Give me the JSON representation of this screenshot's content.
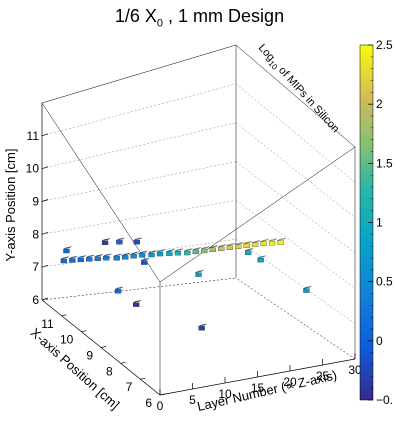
{
  "chart_data": {
    "type": "scatter",
    "title": {
      "prefix": "1/6 X",
      "sub": "0",
      "suffix": " , 1 mm Design"
    },
    "xlabel": "Layer Number (∝ Z-axis)",
    "ylabel": "X-axis Position [cm]",
    "zlabel": "Y-axis Position [cm]",
    "color_label": {
      "prefix": "Log",
      "sub": "10",
      "suffix": " of MIPs in Silicon"
    },
    "layer_range": [
      0,
      30
    ],
    "xpos_range": [
      6,
      12
    ],
    "ypos_range": [
      6,
      12
    ],
    "layer_ticks": [
      "0",
      "5",
      "10",
      "15",
      "20",
      "25",
      "30"
    ],
    "xpos_ticks": [
      "6",
      "7",
      "8",
      "9",
      "10",
      "11"
    ],
    "ypos_ticks": [
      "6",
      "7",
      "8",
      "9",
      "10",
      "11"
    ],
    "color_range": [
      -0.5,
      2.5
    ],
    "color_ticks": [
      "−0.",
      "0",
      "0.5",
      "1",
      "1.5",
      "2",
      "2.5"
    ],
    "points": [
      {
        "layer": 2,
        "x": 11.7,
        "y": 8.3,
        "v": 0.1
      },
      {
        "layer": 3,
        "x": 11.6,
        "y": 8.35,
        "v": 0.15
      },
      {
        "layer": 4,
        "x": 11.5,
        "y": 8.4,
        "v": 0.2
      },
      {
        "layer": 5,
        "x": 11.4,
        "y": 8.45,
        "v": 0.25
      },
      {
        "layer": 6,
        "x": 11.3,
        "y": 8.5,
        "v": 0.3
      },
      {
        "layer": 7,
        "x": 11.2,
        "y": 8.55,
        "v": 0.35
      },
      {
        "layer": 3,
        "x": 11.9,
        "y": 8.6,
        "v": 0.1
      },
      {
        "layer": 8,
        "x": 11.0,
        "y": 8.65,
        "v": 0.4
      },
      {
        "layer": 9,
        "x": 10.9,
        "y": 8.72,
        "v": 0.45
      },
      {
        "layer": 10,
        "x": 10.8,
        "y": 8.8,
        "v": 0.55
      },
      {
        "layer": 11,
        "x": 10.7,
        "y": 8.87,
        "v": 0.6
      },
      {
        "layer": 12,
        "x": 10.55,
        "y": 8.95,
        "v": 0.7
      },
      {
        "layer": 13,
        "x": 10.45,
        "y": 9.02,
        "v": 0.8
      },
      {
        "layer": 14,
        "x": 10.3,
        "y": 9.1,
        "v": 0.95
      },
      {
        "layer": 15,
        "x": 10.2,
        "y": 9.15,
        "v": 1.1
      },
      {
        "layer": 16,
        "x": 10.05,
        "y": 9.22,
        "v": 1.3
      },
      {
        "layer": 17,
        "x": 9.95,
        "y": 9.3,
        "v": 1.5
      },
      {
        "layer": 18,
        "x": 9.85,
        "y": 9.37,
        "v": 1.7
      },
      {
        "layer": 19,
        "x": 9.75,
        "y": 9.45,
        "v": 1.85
      },
      {
        "layer": 20,
        "x": 9.65,
        "y": 9.52,
        "v": 2.0
      },
      {
        "layer": 21,
        "x": 9.55,
        "y": 9.6,
        "v": 2.1
      },
      {
        "layer": 22,
        "x": 9.45,
        "y": 9.67,
        "v": 2.2
      },
      {
        "layer": 23,
        "x": 9.35,
        "y": 9.75,
        "v": 2.25
      },
      {
        "layer": 24,
        "x": 9.25,
        "y": 9.82,
        "v": 2.3
      },
      {
        "layer": 25,
        "x": 9.15,
        "y": 9.9,
        "v": 2.35
      },
      {
        "layer": 26,
        "x": 9.05,
        "y": 9.95,
        "v": 2.4
      },
      {
        "layer": 27,
        "x": 8.95,
        "y": 10.0,
        "v": 2.45
      },
      {
        "layer": 24,
        "x": 9.6,
        "y": 9.1,
        "v": 1.0
      },
      {
        "layer": 25,
        "x": 9.3,
        "y": 8.9,
        "v": 0.9
      },
      {
        "layer": 10,
        "x": 7.5,
        "y": 10.6,
        "v": 0.8
      },
      {
        "layer": 6,
        "x": 10.2,
        "y": 10.3,
        "v": 0.0
      },
      {
        "layer": 5,
        "x": 10.6,
        "y": 10.0,
        "v": -0.3
      },
      {
        "layer": 8,
        "x": 9.6,
        "y": 9.6,
        "v": -0.1
      },
      {
        "layer": 12,
        "x": 11.3,
        "y": 9.0,
        "v": -0.2
      },
      {
        "layer": 26,
        "x": 7.3,
        "y": 8.9,
        "v": 0.7
      },
      {
        "layer": 12,
        "x": 8.0,
        "y": 7.2,
        "v": -0.3
      },
      {
        "layer": 7,
        "x": 10.6,
        "y": 7.3,
        "v": 0.1
      },
      {
        "layer": 11,
        "x": 11.0,
        "y": 6.0,
        "v": -0.4
      }
    ]
  }
}
